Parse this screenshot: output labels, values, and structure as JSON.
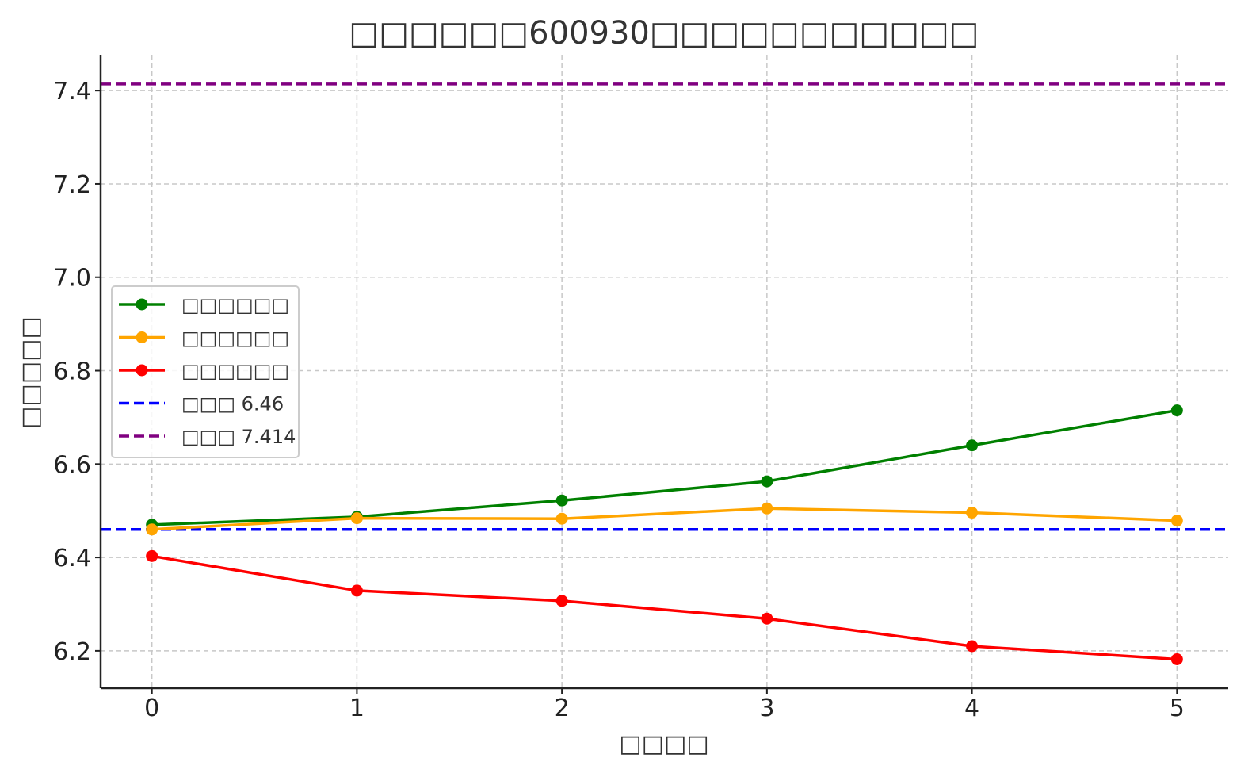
{
  "chart_data": {
    "type": "line",
    "title": "□□□□□□600930□□□□□□□□□□□",
    "xlabel": "□□□□",
    "ylabel": "□□□□□",
    "x": [
      0,
      1,
      2,
      3,
      4,
      5
    ],
    "xlim": [
      -0.25,
      5.25
    ],
    "ylim": [
      6.12,
      7.475
    ],
    "yticks": [
      6.2,
      6.4,
      6.6,
      6.8,
      7.0,
      7.2,
      7.4
    ],
    "xticks": [
      0,
      1,
      2,
      3,
      4,
      5
    ],
    "grid": true,
    "legend_position": "center-left",
    "series": [
      {
        "name": "□□□□□□",
        "color": "#008000",
        "marker": "circle",
        "values": [
          6.47,
          6.487,
          6.522,
          6.563,
          6.64,
          6.715
        ]
      },
      {
        "name": "□□□□□□",
        "color": "#FFA500",
        "marker": "circle",
        "values": [
          6.46,
          6.484,
          6.483,
          6.505,
          6.496,
          6.479
        ]
      },
      {
        "name": "□□□□□□",
        "color": "#FF0000",
        "marker": "circle",
        "values": [
          6.403,
          6.329,
          6.307,
          6.269,
          6.21,
          6.182
        ]
      }
    ],
    "reference_lines": [
      {
        "name": "□□□ 6.46",
        "value": 6.46,
        "color": "#0000FF",
        "style": "dashed"
      },
      {
        "name": "□□□ 7.414",
        "value": 7.414,
        "color": "#800080",
        "style": "dashed"
      }
    ]
  }
}
